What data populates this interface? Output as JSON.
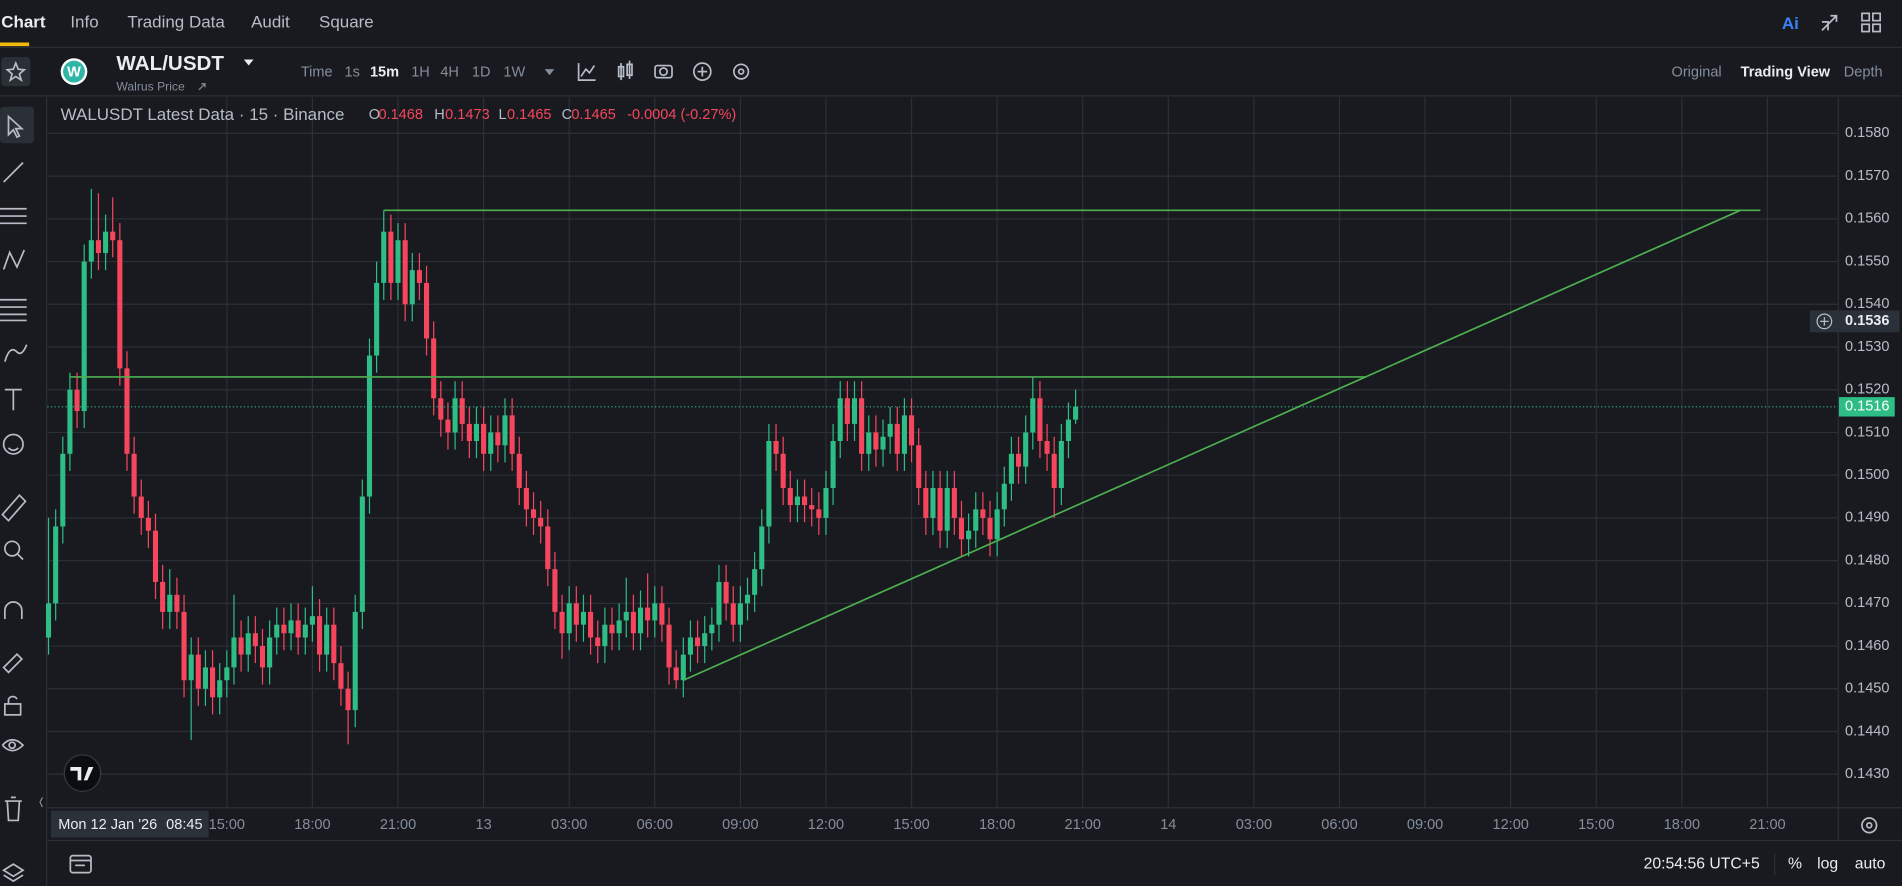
{
  "tabs": [
    "Chart",
    "Info",
    "Trading Data",
    "Audit",
    "Square"
  ],
  "ai": "Ai",
  "symbol": {
    "logo": "W",
    "name": "WAL/USDT",
    "subtitle": "Walrus Price"
  },
  "intervals": [
    "Time",
    "1s",
    "15m",
    "1H",
    "4H",
    "1D",
    "1W"
  ],
  "views": [
    "Original",
    "Trading View",
    "Depth"
  ],
  "footer": {
    "clock": "20:54:56 UTC+5",
    "percent": "%",
    "log": "log",
    "auto": "auto"
  },
  "chart_data": {
    "type": "candlestick",
    "legend": {
      "title": "WALUSDT Latest Data · 15 · Binance",
      "ohlc": [
        {
          "label": "O",
          "value": "0.1468"
        },
        {
          "label": "H",
          "value": "0.1473"
        },
        {
          "label": "L",
          "value": "0.1465"
        },
        {
          "label": "C",
          "value": "0.1465"
        }
      ],
      "change": "-0.0004 (-0.27%)"
    },
    "up_color": "#2ebd85",
    "down_color": "#f6465d",
    "grid": true,
    "xlim": [
      0,
      250.85
    ],
    "xticks": [
      {
        "value": 25,
        "label": "15:00"
      },
      {
        "value": 37,
        "label": "18:00"
      },
      {
        "value": 49,
        "label": "21:00"
      },
      {
        "value": 61,
        "label": "13"
      },
      {
        "value": 73,
        "label": "03:00"
      },
      {
        "value": 85,
        "label": "06:00"
      },
      {
        "value": 97,
        "label": "09:00"
      },
      {
        "value": 109,
        "label": "12:00"
      },
      {
        "value": 121,
        "label": "15:00"
      },
      {
        "value": 133,
        "label": "18:00"
      },
      {
        "value": 145,
        "label": "21:00"
      },
      {
        "value": 157,
        "label": "14"
      },
      {
        "value": 169,
        "label": "03:00"
      },
      {
        "value": 181,
        "label": "06:00"
      },
      {
        "value": 193,
        "label": "09:00"
      },
      {
        "value": 205,
        "label": "12:00"
      },
      {
        "value": 217,
        "label": "15:00"
      },
      {
        "value": 229,
        "label": "18:00"
      },
      {
        "value": 241,
        "label": "21:00"
      }
    ],
    "ylim": [
      0.14223,
      0.15885
    ],
    "yticks": [
      {
        "value": 0.143,
        "label": "0.1430"
      },
      {
        "value": 0.144,
        "label": "0.1440"
      },
      {
        "value": 0.145,
        "label": "0.1450"
      },
      {
        "value": 0.146,
        "label": "0.1460"
      },
      {
        "value": 0.147,
        "label": "0.1470"
      },
      {
        "value": 0.148,
        "label": "0.1480"
      },
      {
        "value": 0.149,
        "label": "0.1490"
      },
      {
        "value": 0.15,
        "label": "0.1500"
      },
      {
        "value": 0.151,
        "label": "0.1510"
      },
      {
        "value": 0.152,
        "label": "0.1520"
      },
      {
        "value": 0.153,
        "label": "0.1530"
      },
      {
        "value": 0.154,
        "label": "0.1540"
      },
      {
        "value": 0.155,
        "label": "0.1550"
      },
      {
        "value": 0.156,
        "label": "0.1560"
      },
      {
        "value": 0.157,
        "label": "0.1570"
      },
      {
        "value": 0.158,
        "label": "0.1580"
      }
    ],
    "crosshair_date": "Mon 12 Jan '26",
    "crosshair_time": "08:45",
    "crosshair_price": 0.1536,
    "last_price": 0.1516,
    "drawings": [
      {
        "color": "#4caf50",
        "x": [
          47,
          240
        ],
        "y": [
          0.1562,
          0.1562
        ]
      },
      {
        "color": "#4caf50",
        "x": [
          3,
          184.7
        ],
        "y": [
          0.1523,
          0.1523
        ]
      },
      {
        "color": "#4caf50",
        "x": [
          89,
          237.2
        ],
        "y": [
          0.1452,
          0.1562
        ]
      }
    ],
    "open": [
      0.1462,
      0.147,
      0.1488,
      0.1505,
      0.152,
      0.1515,
      0.155,
      0.1555,
      0.1552,
      0.1557,
      0.1555,
      0.1525,
      0.1505,
      0.1495,
      0.149,
      0.1487,
      0.1475,
      0.1468,
      0.1472,
      0.1468,
      0.1452,
      0.1458,
      0.145,
      0.1455,
      0.1448,
      0.1452,
      0.1455,
      0.1462,
      0.1458,
      0.1463,
      0.146,
      0.1455,
      0.1462,
      0.1465,
      0.1463,
      0.1466,
      0.1462,
      0.1465,
      0.1467,
      0.1458,
      0.1465,
      0.1456,
      0.145,
      0.1445,
      0.1468,
      0.1495,
      0.1528,
      0.1545,
      0.1557,
      0.1545,
      0.1555,
      0.154,
      0.1548,
      0.1545,
      0.1532,
      0.1518,
      0.1513,
      0.151,
      0.1518,
      0.1512,
      0.1508,
      0.1512,
      0.1505,
      0.151,
      0.1507,
      0.1514,
      0.1505,
      0.1497,
      0.1492,
      0.149,
      0.1488,
      0.1478,
      0.1468,
      0.1463,
      0.147,
      0.1465,
      0.1468,
      0.1462,
      0.146,
      0.1465,
      0.1463,
      0.1466,
      0.1468,
      0.1463,
      0.1469,
      0.1466,
      0.147,
      0.1465,
      0.1455,
      0.1452,
      0.1458,
      0.1462,
      0.146,
      0.1463,
      0.1465,
      0.1475,
      0.147,
      0.1465,
      0.147,
      0.1472,
      0.1478,
      0.1488,
      0.1508,
      0.1505,
      0.1497,
      0.1493,
      0.1495,
      0.1493,
      0.1492,
      0.149,
      0.1497,
      0.1508,
      0.1518,
      0.1512,
      0.1518,
      0.1505,
      0.151,
      0.1506,
      0.1509,
      0.1512,
      0.1505,
      0.1514,
      0.1507,
      0.1497,
      0.149,
      0.1497,
      0.1487,
      0.1497,
      0.149,
      0.1485,
      0.1487,
      0.1492,
      0.149,
      0.1485,
      0.1492,
      0.1498,
      0.1505,
      0.1502,
      0.151,
      0.1518,
      0.1508,
      0.1505,
      0.1497,
      0.1508,
      0.1513
    ],
    "high": [
      0.149,
      0.1492,
      0.1509,
      0.1524,
      0.1524,
      0.1554,
      0.1567,
      0.1566,
      0.1561,
      0.1565,
      0.1559,
      0.1529,
      0.1509,
      0.1499,
      0.1494,
      0.1491,
      0.1479,
      0.1478,
      0.1476,
      0.1472,
      0.1462,
      0.1462,
      0.1459,
      0.1459,
      0.1456,
      0.1459,
      0.1472,
      0.1466,
      0.1467,
      0.1467,
      0.1464,
      0.1466,
      0.1469,
      0.1469,
      0.147,
      0.147,
      0.1469,
      0.1474,
      0.1471,
      0.1469,
      0.1469,
      0.146,
      0.1454,
      0.1472,
      0.1499,
      0.1532,
      0.155,
      0.1562,
      0.1561,
      0.1559,
      0.1559,
      0.1552,
      0.1552,
      0.1549,
      0.1536,
      0.1522,
      0.1517,
      0.1522,
      0.1522,
      0.1516,
      0.1516,
      0.1516,
      0.1514,
      0.1514,
      0.1518,
      0.1518,
      0.1509,
      0.1501,
      0.1496,
      0.1494,
      0.1492,
      0.1482,
      0.1472,
      0.1474,
      0.1474,
      0.1472,
      0.1472,
      0.1466,
      0.1469,
      0.1469,
      0.147,
      0.1476,
      0.1472,
      0.1473,
      0.1477,
      0.1474,
      0.1474,
      0.1469,
      0.1459,
      0.1462,
      0.1466,
      0.1466,
      0.1467,
      0.1469,
      0.1479,
      0.1479,
      0.1474,
      0.1474,
      0.1476,
      0.1482,
      0.1492,
      0.1512,
      0.1512,
      0.1509,
      0.1501,
      0.1499,
      0.1499,
      0.1497,
      0.1496,
      0.1501,
      0.1512,
      0.1522,
      0.1522,
      0.1522,
      0.1522,
      0.1514,
      0.1514,
      0.1513,
      0.1516,
      0.1516,
      0.1518,
      0.1518,
      0.1511,
      0.1501,
      0.1501,
      0.1501,
      0.1501,
      0.1501,
      0.1494,
      0.1491,
      0.1496,
      0.1496,
      0.1494,
      0.1496,
      0.1502,
      0.1509,
      0.1509,
      0.1514,
      0.1523,
      0.1522,
      0.1512,
      0.1509,
      0.1512,
      0.1517,
      0.152
    ],
    "low": [
      0.1458,
      0.1466,
      0.1484,
      0.1501,
      0.1511,
      0.1511,
      0.1546,
      0.1548,
      0.1548,
      0.1551,
      0.1521,
      0.1501,
      0.1491,
      0.1486,
      0.1483,
      0.1471,
      0.1464,
      0.1464,
      0.1464,
      0.1448,
      0.1438,
      0.1446,
      0.1446,
      0.1444,
      0.1444,
      0.1448,
      0.1451,
      0.1454,
      0.1454,
      0.1456,
      0.1451,
      0.1451,
      0.1458,
      0.1459,
      0.1459,
      0.1458,
      0.1458,
      0.1461,
      0.1454,
      0.1454,
      0.1452,
      0.1446,
      0.1437,
      0.1441,
      0.1464,
      0.1491,
      0.1524,
      0.1541,
      0.1541,
      0.1541,
      0.1536,
      0.1536,
      0.1541,
      0.1528,
      0.1514,
      0.1509,
      0.1506,
      0.1506,
      0.1508,
      0.1504,
      0.1504,
      0.1501,
      0.1501,
      0.1503,
      0.1503,
      0.1501,
      0.1493,
      0.1488,
      0.1486,
      0.1484,
      0.1474,
      0.1464,
      0.1457,
      0.1459,
      0.1461,
      0.1461,
      0.1458,
      0.1456,
      0.1456,
      0.1459,
      0.1459,
      0.1462,
      0.1459,
      0.1459,
      0.1462,
      0.1462,
      0.1461,
      0.1451,
      0.145,
      0.1448,
      0.1454,
      0.1456,
      0.1456,
      0.1459,
      0.1461,
      0.1466,
      0.1461,
      0.1461,
      0.1466,
      0.1468,
      0.1474,
      0.1484,
      0.1501,
      0.1493,
      0.1489,
      0.1489,
      0.1489,
      0.1488,
      0.1486,
      0.1486,
      0.1493,
      0.1504,
      0.1508,
      0.1508,
      0.1501,
      0.1501,
      0.1502,
      0.1502,
      0.1505,
      0.1501,
      0.1501,
      0.1503,
      0.1493,
      0.1486,
      0.1486,
      0.1483,
      0.1483,
      0.1486,
      0.1481,
      0.1481,
      0.1483,
      0.1486,
      0.1481,
      0.1481,
      0.1488,
      0.1494,
      0.1498,
      0.1498,
      0.1506,
      0.1504,
      0.1501,
      0.149,
      0.1493,
      0.1504,
      0.1512
    ],
    "close": [
      0.147,
      0.1488,
      0.1505,
      0.152,
      0.1515,
      0.155,
      0.1555,
      0.1552,
      0.1557,
      0.1555,
      0.1525,
      0.1505,
      0.1495,
      0.149,
      0.1487,
      0.1475,
      0.1468,
      0.1472,
      0.1468,
      0.1452,
      0.1458,
      0.145,
      0.1455,
      0.1448,
      0.1452,
      0.1455,
      0.1462,
      0.1458,
      0.1463,
      0.146,
      0.1455,
      0.1462,
      0.1465,
      0.1463,
      0.1466,
      0.1462,
      0.1465,
      0.1467,
      0.1458,
      0.1465,
      0.1456,
      0.145,
      0.1445,
      0.1468,
      0.1495,
      0.1528,
      0.1545,
      0.1557,
      0.1545,
      0.1555,
      0.154,
      0.1548,
      0.1545,
      0.1532,
      0.1518,
      0.1513,
      0.151,
      0.1518,
      0.1512,
      0.1508,
      0.1512,
      0.1505,
      0.151,
      0.1507,
      0.1514,
      0.1505,
      0.1497,
      0.1492,
      0.149,
      0.1488,
      0.1478,
      0.1468,
      0.1463,
      0.147,
      0.1465,
      0.1468,
      0.1462,
      0.146,
      0.1465,
      0.1463,
      0.1466,
      0.1468,
      0.1463,
      0.1469,
      0.1466,
      0.147,
      0.1465,
      0.1455,
      0.1452,
      0.1458,
      0.1462,
      0.146,
      0.1463,
      0.1465,
      0.1475,
      0.147,
      0.1465,
      0.147,
      0.1472,
      0.1478,
      0.1488,
      0.1508,
      0.1505,
      0.1497,
      0.1493,
      0.1495,
      0.1493,
      0.1492,
      0.149,
      0.1497,
      0.1508,
      0.1518,
      0.1512,
      0.1518,
      0.1505,
      0.151,
      0.1506,
      0.1509,
      0.1512,
      0.1505,
      0.1514,
      0.1507,
      0.1497,
      0.149,
      0.1497,
      0.1487,
      0.1497,
      0.149,
      0.1485,
      0.1487,
      0.1492,
      0.149,
      0.1485,
      0.1492,
      0.1498,
      0.1505,
      0.1502,
      0.151,
      0.1518,
      0.1508,
      0.1505,
      0.1497,
      0.1508,
      0.1513,
      0.1516
    ]
  }
}
